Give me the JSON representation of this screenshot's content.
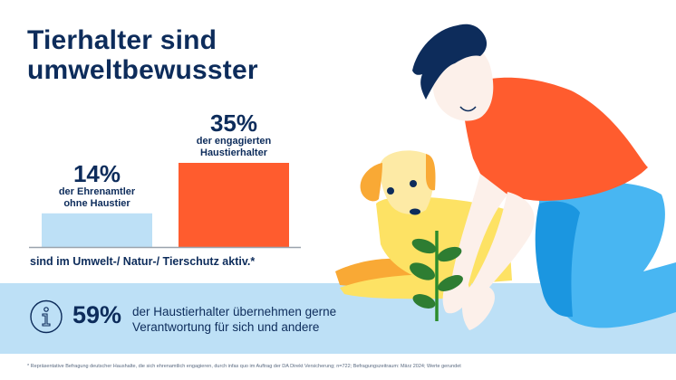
{
  "title": {
    "line1": "Tierhalter sind",
    "line2": "umweltbewusster"
  },
  "chart_data": {
    "type": "bar",
    "title": "Tierhalter sind umweltbewusster",
    "categories": [
      "der Ehrenamtler ohne Haustier",
      "der engagierten Haustierhalter"
    ],
    "values": [
      14,
      35
    ],
    "value_labels": [
      "14%",
      "35%"
    ],
    "colors": [
      "#bde0f6",
      "#ff5c2e"
    ],
    "xlabel": "sind im Umwelt-/ Natur-/ Tierschutz aktiv.*",
    "ylabel": "",
    "ylim": [
      0,
      35
    ],
    "grid": false
  },
  "bars": [
    {
      "value_label": "14%",
      "label_line1": "der Ehrenamtler",
      "label_line2": "ohne Haustier"
    },
    {
      "value_label": "35%",
      "label_line1": "der engagierten",
      "label_line2": "Haustierhalter"
    }
  ],
  "caption": "sind im Umwelt-/ Natur-/ Tierschutz aktiv.*",
  "info": {
    "icon": "info-icon",
    "value": "59%",
    "text_line1": "der Haustierhalter übernehmen gerne",
    "text_line2": "Verantwortung für sich und andere"
  },
  "footnote": "*  Repräsentative Befragung deutscher Haushalte, die sich ehrenamtlich engagieren, durch infas quo im Auftrag der DA Direkt Versicherung; n=722; Befragungszeitraum: März 2024; Werte gerundet",
  "colors": {
    "navy": "#0d2c5b",
    "orange": "#ff5c2e",
    "light_blue": "#bde0f6"
  }
}
